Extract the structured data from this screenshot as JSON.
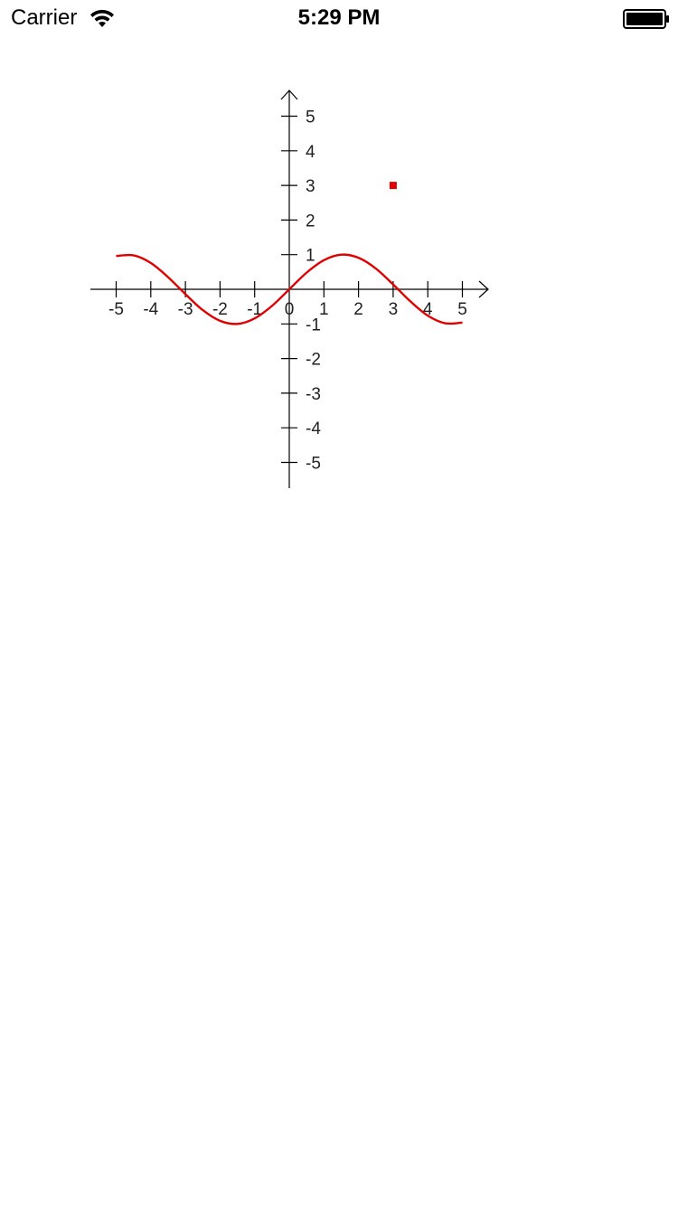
{
  "status_bar": {
    "carrier": "Carrier",
    "time": "5:29 PM",
    "wifi_icon": "wifi-icon",
    "battery_icon": "battery-icon"
  },
  "chart_data": {
    "type": "line",
    "title": "",
    "xlabel": "",
    "ylabel": "",
    "xlim": [
      -5,
      5
    ],
    "ylim": [
      -5,
      5
    ],
    "grid": false,
    "x_ticks": [
      -5,
      -4,
      -3,
      -2,
      -1,
      0,
      1,
      2,
      3,
      4,
      5
    ],
    "y_ticks": [
      5,
      4,
      3,
      2,
      1,
      -1,
      -2,
      -3,
      -4,
      -5
    ],
    "axis_color": "#000000",
    "series": [
      {
        "type": "line",
        "color": "#e00000",
        "x": [
          -5,
          -4.5,
          -4,
          -3.5,
          -3,
          -2.5,
          -2,
          -1.5,
          -1,
          -0.5,
          0,
          0.5,
          1,
          1.5,
          2,
          2.5,
          3,
          3.5,
          4,
          4.5,
          5
        ],
        "y": [
          0.96,
          0.98,
          0.76,
          0.35,
          -0.14,
          -0.6,
          -0.91,
          -1.0,
          -0.84,
          -0.48,
          0,
          0.48,
          0.84,
          1.0,
          0.91,
          0.6,
          0.14,
          -0.35,
          -0.76,
          -0.98,
          -0.96
        ]
      },
      {
        "type": "scatter",
        "color": "#e00000",
        "points": [
          [
            3,
            3
          ]
        ]
      }
    ]
  }
}
